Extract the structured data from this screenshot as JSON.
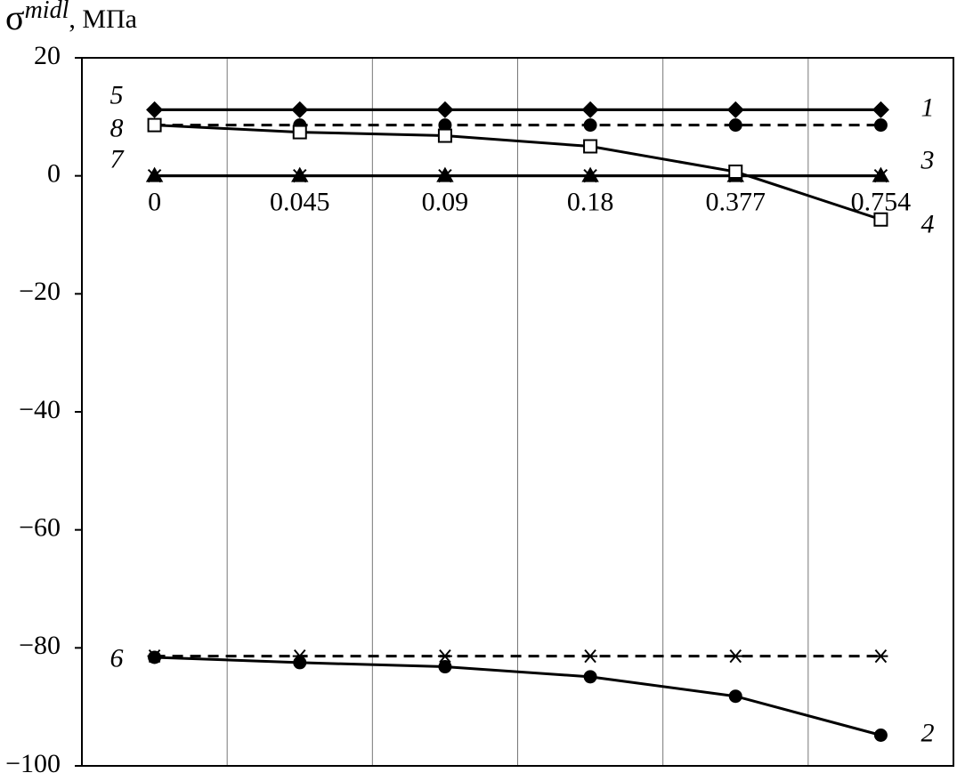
{
  "chart_data": {
    "type": "line",
    "y_label_symbol": "σ",
    "y_label_superscript": "midl",
    "y_label_unit": ", МПа",
    "categories": [
      "0",
      "0.045",
      "0.09",
      "0.18",
      "0.377",
      "0.754"
    ],
    "ylim": [
      -100,
      20
    ],
    "yticks": [
      {
        "value": -100,
        "label": "−100"
      },
      {
        "value": -80,
        "label": "−80"
      },
      {
        "value": -60,
        "label": "−60"
      },
      {
        "value": -40,
        "label": "−40"
      },
      {
        "value": -20,
        "label": "−20"
      },
      0,
      20
    ],
    "grid": "vertical",
    "series": [
      {
        "name": "1",
        "color": "#000000",
        "marker": "diamond",
        "dash": "solid",
        "label_side": "right",
        "values": [
          11.2,
          11.2,
          11.2,
          11.2,
          11.2,
          11.2
        ]
      },
      {
        "name": "5",
        "color": "#000000",
        "marker": "diamond",
        "dash": "solid",
        "label_side": "left",
        "values": [
          11.2,
          11.2,
          11.2,
          11.2,
          11.2,
          11.2
        ]
      },
      {
        "name": "8",
        "color": "#000000",
        "marker": "circle",
        "dash": "dashed",
        "label_side": "left",
        "values": [
          8.6,
          8.6,
          8.6,
          8.6,
          8.6,
          8.6
        ]
      },
      {
        "name": "3",
        "color": "#000000",
        "marker": "cross",
        "dash": "solid",
        "label_side": "right",
        "values": [
          0,
          0,
          0,
          0,
          0,
          0
        ]
      },
      {
        "name": "7",
        "color": "#000000",
        "marker": "triangle",
        "dash": "solid",
        "label_side": "left",
        "values": [
          0,
          0,
          0,
          0,
          0,
          0
        ]
      },
      {
        "name": "4",
        "color": "#000000",
        "marker": "open-square",
        "dash": "solid",
        "label_side": "right",
        "values": [
          8.6,
          7.4,
          6.8,
          5.0,
          0.7,
          -7.4
        ]
      },
      {
        "name": "6",
        "color": "#000000",
        "marker": "asterisk",
        "dash": "dashed",
        "label_side": "left",
        "values": [
          -81.4,
          -81.4,
          -81.4,
          -81.4,
          -81.4,
          -81.4
        ]
      },
      {
        "name": "2",
        "color": "#000000",
        "marker": "circle",
        "dash": "solid",
        "label_side": "right",
        "values": [
          -81.6,
          -82.5,
          -83.2,
          -84.9,
          -88.2,
          -94.8
        ]
      }
    ]
  }
}
